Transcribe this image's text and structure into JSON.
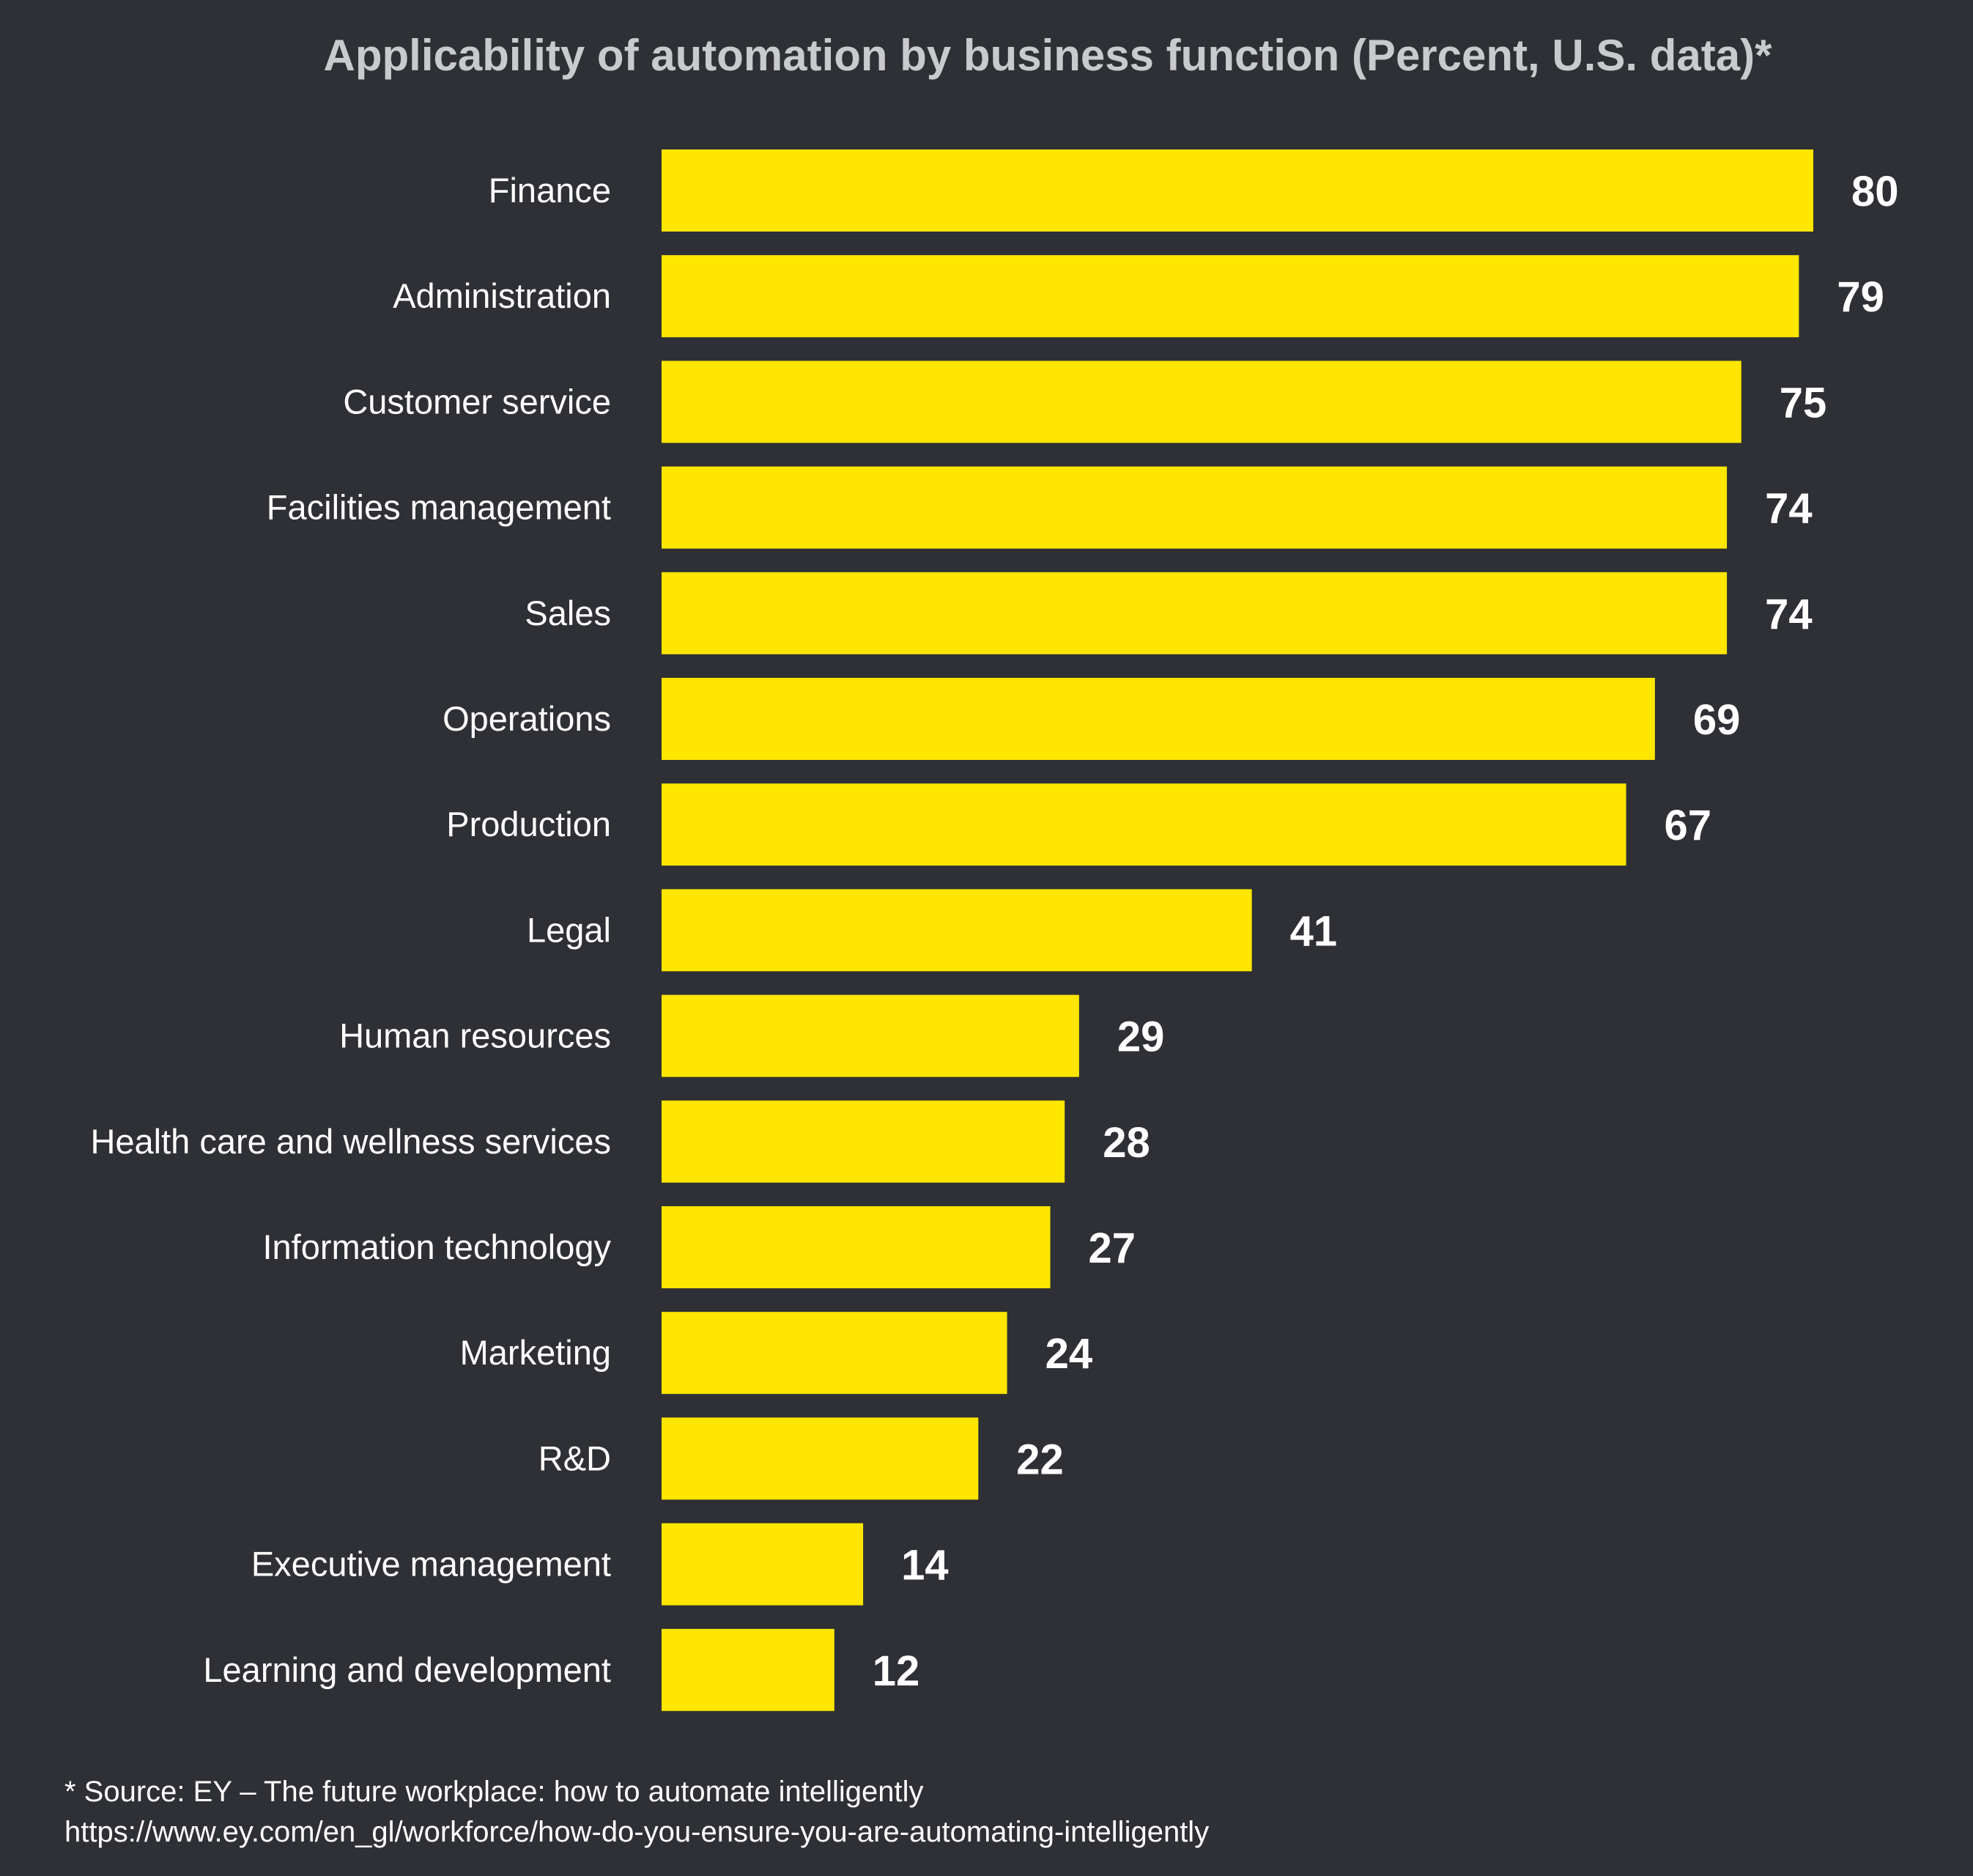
{
  "colors": {
    "background": "#2e3035",
    "bar": "#ffe600",
    "title": "#c9cacc",
    "text": "#ffffff"
  },
  "chart_data": {
    "type": "bar",
    "orientation": "horizontal",
    "title": "Applicability of automation by business function (Percent, U.S. data)*",
    "xlabel": "",
    "ylabel": "",
    "grid": false,
    "legend": "none",
    "xlim": [
      0,
      80
    ],
    "categories": [
      "Finance",
      "Administration",
      "Customer service",
      "Facilities management",
      "Sales",
      "Operations",
      "Production",
      "Legal",
      "Human resources",
      "Health care and wellness services",
      "Information technology",
      "Marketing",
      "R&D",
      "Executive management",
      "Learning and development"
    ],
    "values": [
      80,
      79,
      75,
      74,
      74,
      69,
      67,
      41,
      29,
      28,
      27,
      24,
      22,
      14,
      12
    ],
    "value_labels": [
      "80",
      "79",
      "75",
      "74",
      "74",
      "69",
      "67",
      "41",
      "29",
      "28",
      "27",
      "24",
      "22",
      "14",
      "12"
    ]
  },
  "source": {
    "note": "* Source: EY – The future workplace: how to automate intelligently",
    "url": "https://www.ey.com/en_gl/workforce/how-do-you-ensure-you-are-automating-intelligently"
  }
}
